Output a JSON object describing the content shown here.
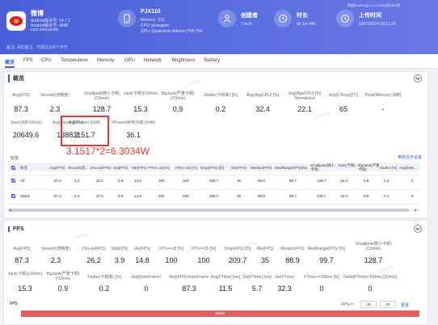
{
  "header": {
    "app": {
      "name": "微博",
      "version_line": "Android版本号: 14.7.2",
      "build_line": "Android版本号: 4888",
      "package": "com.sina.weibo"
    },
    "device": {
      "title": "PJX110",
      "line1": "Memory: 11G",
      "line2": "CPU: pineapple",
      "line3": "GPU: Qualcomm Adreno (TM) 750"
    },
    "creator": {
      "title": "创建者",
      "value": "7 tech"
    },
    "duration": {
      "title": "时长",
      "value": "0h 1m 44s"
    },
    "upload": {
      "title": "上传时间",
      "value": "19/07/2024 00:11:20"
    },
    "top_right_text": "数据[PerfDog][10.4.240620]版本内容",
    "tips": "备注: 添加备注 · 不超过100个字符"
  },
  "tabs": [
    "概览",
    "FPS",
    "CPU",
    "Temperature",
    "Memory",
    "GPU",
    "Network",
    "Brightness",
    "Battery"
  ],
  "overview": {
    "title": "概览",
    "row1": [
      {
        "label": "Avg(FPS)",
        "value": "87.3"
      },
      {
        "label": "Smooth(流畅度)",
        "value": "2.3"
      },
      {
        "label": "Smalljank(微小卡顿)(/10min)",
        "value": "128.7"
      },
      {
        "label": "Jank(卡顿)(/10min)",
        "value": "15.3"
      },
      {
        "label": "BigJank(严重卡顿)(/10min)",
        "value": "0.9"
      },
      {
        "label": "Stutter(卡顿率) [%]",
        "value": "0.2"
      },
      {
        "label": "Avg(AppCPU) [%]",
        "value": "32.4"
      },
      {
        "label": "Avg(AppCPU) [%] Normalized",
        "value": "22.1"
      },
      {
        "label": "Avg(CTemp)[°C]",
        "value": "65"
      },
      {
        "label": "Peak(Memory) [MB]",
        "value": "-"
      }
    ],
    "row2": [
      {
        "label": "Send [KB/10min]",
        "value": "20649.6"
      },
      {
        "label": "Avg(Recv) [KB/s]",
        "value": "1388.2"
      },
      {
        "label": "Avg(Power) [mW]",
        "value": "3151.7"
      },
      {
        "label": "FPower(耗电功率) [mW]",
        "value": "36.1"
      }
    ],
    "annotation": "3.1517*2=6.3034W"
  },
  "label_table": {
    "title": "标签",
    "link": "参数显示设置",
    "headers": [
      "标签",
      "Avg(FPS)",
      "Smooth(流...",
      "1%Low(FPS)",
      "Std(FPS)",
      "Var(FPS)",
      "FPS>=18 [%]",
      "FPS>=25 [%]",
      "Drop(FPS) [/h]",
      "Min(FPS)",
      "Median(FPS)",
      "MedRange(FPS)[%]",
      "Smalljank(微小卡顿)",
      "Jank(卡顿)",
      "BigJank(严重卡顿)",
      "Stutter [%]",
      "Avg(Inter..."
    ],
    "rows": [
      [
        "All",
        "87.3",
        "2.3",
        "26.2",
        "3.9",
        "14.8",
        "100",
        "100",
        "209.7",
        "35",
        "88.9",
        "99.7",
        "128.7",
        "15.3",
        "0.9",
        "0.2",
        "0"
      ],
      [
        "label1",
        "87.3",
        "2.3",
        "27.5",
        "3.9",
        "14.8",
        "100",
        "100",
        "209.7",
        "35",
        "88.9",
        "99.7",
        "128.7",
        "15.3",
        "0.8",
        "0.2",
        "0"
      ]
    ]
  },
  "fps_section": {
    "title": "FPS",
    "row1": [
      {
        "label": "Avg(FPS)",
        "value": "87.3"
      },
      {
        "label": "Smooth(流畅度)",
        "value": "2.3"
      },
      {
        "label": "1%Low(FPS)",
        "value": "26.2"
      },
      {
        "label": "Std(FPS)",
        "value": "3.9"
      },
      {
        "label": "Var(FPS)",
        "value": "14.8"
      },
      {
        "label": "FPS>=18 [%]",
        "value": "100"
      },
      {
        "label": "FPS>=25 [%]",
        "value": "100"
      },
      {
        "label": "Drop(FPS) [/h]",
        "value": "209.7"
      },
      {
        "label": "Min(FPS)",
        "value": "35"
      },
      {
        "label": "Median(FPS)",
        "value": "88.9"
      },
      {
        "label": "MedRange(FPS) [%]",
        "value": "99.7"
      },
      {
        "label": "Smalljank(微小卡顿)(/10min)",
        "value": "128.7"
      }
    ],
    "row2": [
      {
        "label": "Jank(卡顿)(/10min)",
        "value": "15.3"
      },
      {
        "label": "BigJank(严重卡顿)(/10min)",
        "value": "0.9"
      },
      {
        "label": "Stutter(卡顿率) [%]",
        "value": "0.2"
      },
      {
        "label": "Avg(InterFrame)",
        "value": "0"
      },
      {
        "label": "Avg(FPS)+InterFrame",
        "value": "87.3"
      },
      {
        "label": "Avg(FTime) [ms]",
        "value": "11.5"
      },
      {
        "label": "Std(FTime) [ms]",
        "value": "5.7"
      },
      {
        "label": "Var(FTime)",
        "value": "32.3"
      },
      {
        "label": "FTime>=100ms [%]",
        "value": "0"
      },
      {
        "label": "Delta(FTime)>100ms [/10min]",
        "value": "0"
      }
    ],
    "chart": {
      "title": "FPS",
      "fps_label": "FPS<=",
      "low": "18",
      "high": "25",
      "reset": "重置",
      "bar_label": "label1",
      "bar_color": "#e06060"
    }
  },
  "colors": {
    "accent": "#3b5bdb",
    "header": "#5165dd",
    "annotation": "#e53935"
  },
  "watermark": "PerfDog"
}
